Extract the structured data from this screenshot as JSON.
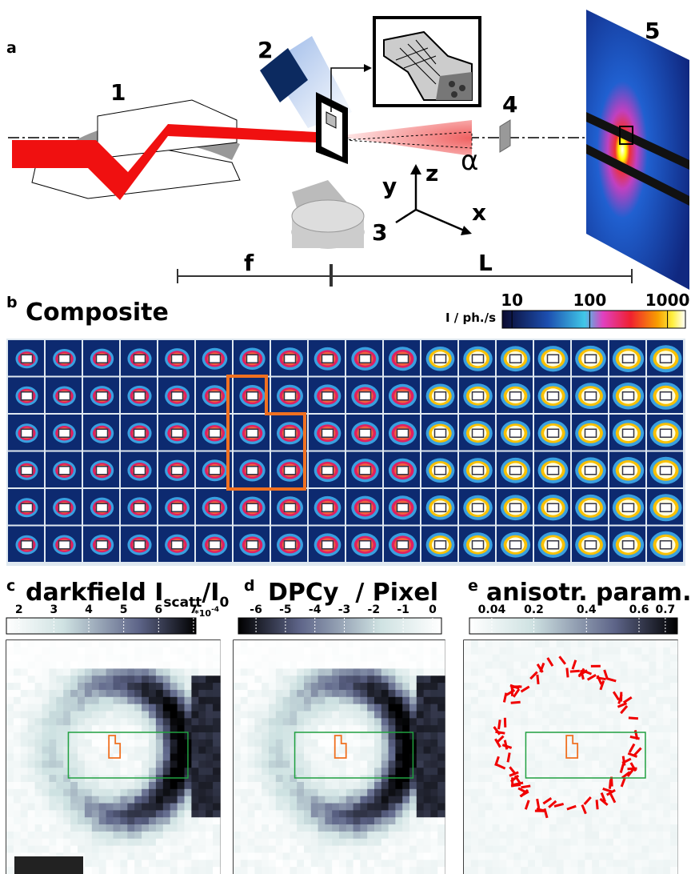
{
  "panel_a": {
    "label": "a",
    "components": [
      "1",
      "2",
      "3",
      "4",
      "5"
    ],
    "axes": [
      "z",
      "y",
      "x"
    ],
    "distances": [
      "f",
      "L"
    ],
    "angle": "α"
  },
  "panel_b": {
    "label": "b",
    "title": "Composite",
    "colorbar": {
      "label": "I / ph./s",
      "scale": "log",
      "range": [
        7.5,
        1700
      ],
      "ticks": [
        10,
        100,
        1000
      ]
    }
  },
  "panel_c": {
    "label": "c",
    "title": [
      "darkfield I",
      "scatt",
      "/I",
      "0"
    ],
    "multiplier": [
      "*10",
      "-4"
    ],
    "colorbar": {
      "range": [
        1.64,
        7.07
      ],
      "ticks": [
        2,
        3,
        4,
        5,
        6,
        7
      ]
    }
  },
  "panel_d": {
    "label": "d",
    "title": "DPCy  / Pixel",
    "colorbar": {
      "range": [
        -6.6,
        0.3
      ],
      "ticks": [
        -6,
        -5,
        -4,
        -3,
        -2,
        -1,
        0
      ]
    }
  },
  "panel_e": {
    "label": "e",
    "title": "anisotr. param.",
    "colorbar": {
      "range": [
        -0.045,
        0.746
      ],
      "ticks": [
        0.04,
        0.2,
        0.4,
        0.6,
        0.7
      ]
    }
  }
}
